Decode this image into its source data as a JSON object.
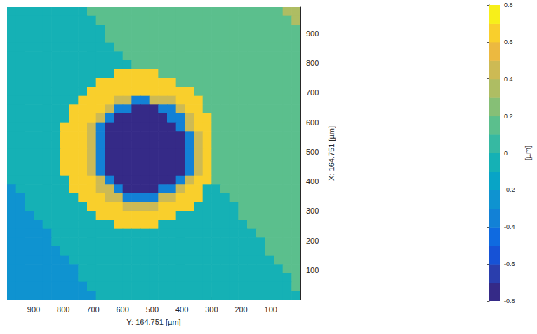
{
  "chart_data": {
    "type": "heatmap",
    "xlabel": "Y: 164.751 [µm]",
    "ylabel": "X: 164.751 [µm]",
    "xlim": [
      990,
      0
    ],
    "ylim": [
      0,
      990
    ],
    "xticks": [
      900,
      800,
      700,
      600,
      500,
      400,
      300,
      200,
      100
    ],
    "yticks": [
      100,
      200,
      300,
      400,
      500,
      600,
      700,
      800,
      900
    ],
    "grid": false,
    "x": [
      975,
      945,
      915,
      885,
      855,
      825,
      795,
      765,
      735,
      705,
      675,
      645,
      615,
      585,
      555,
      525,
      495,
      465,
      435,
      405,
      375,
      345,
      315,
      285,
      255,
      225,
      195,
      165,
      135,
      105,
      75,
      45,
      15
    ],
    "y": [
      975,
      945,
      915,
      885,
      855,
      825,
      795,
      765,
      735,
      705,
      675,
      645,
      615,
      585,
      555,
      525,
      495,
      465,
      435,
      405,
      375,
      345,
      315,
      285,
      255,
      225,
      195,
      165,
      135,
      105,
      75,
      45,
      15
    ],
    "z": [
      [
        -0.1,
        -0.1,
        -0.1,
        -0.1,
        -0.1,
        -0.1,
        -0.1,
        -0.1,
        -0.1,
        0.1,
        0.1,
        0.1,
        0.1,
        0.1,
        0.1,
        0.1,
        0.1,
        0.1,
        0.1,
        0.1,
        0.1,
        0.1,
        0.1,
        0.1,
        0.1,
        0.1,
        0.1,
        0.1,
        0.1,
        0.1,
        0.1,
        0.3,
        0.3
      ],
      [
        -0.1,
        -0.1,
        -0.1,
        -0.1,
        -0.1,
        -0.1,
        -0.1,
        -0.1,
        -0.1,
        -0.1,
        0.1,
        0.1,
        0.1,
        0.1,
        0.1,
        0.1,
        0.1,
        0.1,
        0.1,
        0.1,
        0.1,
        0.1,
        0.1,
        0.1,
        0.1,
        0.1,
        0.1,
        0.1,
        0.1,
        0.1,
        0.1,
        0.1,
        0.3
      ],
      [
        -0.1,
        -0.1,
        -0.1,
        -0.1,
        -0.1,
        -0.1,
        -0.1,
        -0.1,
        -0.1,
        -0.1,
        -0.1,
        0.1,
        0.1,
        0.1,
        0.1,
        0.1,
        0.1,
        0.1,
        0.1,
        0.1,
        0.1,
        0.1,
        0.1,
        0.1,
        0.1,
        0.1,
        0.1,
        0.1,
        0.1,
        0.1,
        0.1,
        0.1,
        0.1
      ],
      [
        -0.1,
        -0.1,
        -0.1,
        -0.1,
        -0.1,
        -0.1,
        -0.1,
        -0.1,
        -0.1,
        -0.1,
        -0.1,
        0.1,
        0.1,
        0.1,
        0.1,
        0.1,
        0.1,
        0.1,
        0.1,
        0.1,
        0.1,
        0.1,
        0.1,
        0.1,
        0.1,
        0.1,
        0.1,
        0.1,
        0.1,
        0.1,
        0.1,
        0.1,
        0.1
      ],
      [
        -0.1,
        -0.1,
        -0.1,
        -0.1,
        -0.1,
        -0.1,
        -0.1,
        -0.1,
        -0.1,
        -0.1,
        -0.1,
        -0.1,
        0.1,
        0.1,
        0.1,
        0.1,
        0.1,
        0.1,
        0.1,
        0.1,
        0.1,
        0.1,
        0.1,
        0.1,
        0.1,
        0.1,
        0.1,
        0.1,
        0.1,
        0.1,
        0.1,
        0.1,
        0.1
      ],
      [
        -0.1,
        -0.1,
        -0.1,
        -0.1,
        -0.1,
        -0.1,
        -0.1,
        -0.1,
        -0.1,
        -0.1,
        -0.1,
        -0.1,
        -0.1,
        0.1,
        0.1,
        0.1,
        0.1,
        0.1,
        0.1,
        0.1,
        0.1,
        0.1,
        0.1,
        0.1,
        0.1,
        0.1,
        0.1,
        0.1,
        0.1,
        0.1,
        0.1,
        0.1,
        0.1
      ],
      [
        -0.1,
        -0.1,
        -0.1,
        -0.1,
        -0.1,
        -0.1,
        -0.1,
        -0.1,
        -0.1,
        -0.1,
        -0.1,
        -0.1,
        -0.1,
        -0.1,
        0.1,
        0.1,
        0.1,
        0.1,
        0.1,
        0.1,
        0.1,
        0.1,
        0.1,
        0.1,
        0.1,
        0.1,
        0.1,
        0.1,
        0.1,
        0.1,
        0.1,
        0.1,
        0.1
      ],
      [
        -0.1,
        -0.1,
        -0.1,
        -0.1,
        -0.1,
        -0.1,
        -0.1,
        -0.1,
        -0.1,
        -0.1,
        -0.1,
        -0.1,
        0.65,
        0.65,
        0.65,
        0.65,
        0.65,
        0.1,
        0.1,
        0.1,
        0.1,
        0.1,
        0.1,
        0.1,
        0.1,
        0.1,
        0.1,
        0.1,
        0.1,
        0.1,
        0.1,
        0.1,
        0.1
      ],
      [
        -0.1,
        -0.1,
        -0.1,
        -0.1,
        -0.1,
        -0.1,
        -0.1,
        -0.1,
        -0.1,
        -0.1,
        0.65,
        0.65,
        0.65,
        0.65,
        0.65,
        0.65,
        0.65,
        0.65,
        0.65,
        0.1,
        0.1,
        0.1,
        0.1,
        0.1,
        0.1,
        0.1,
        0.1,
        0.1,
        0.1,
        0.1,
        0.1,
        0.1,
        0.1
      ],
      [
        -0.1,
        -0.1,
        -0.1,
        -0.1,
        -0.1,
        -0.1,
        -0.1,
        -0.1,
        -0.1,
        0.65,
        0.65,
        0.65,
        0.65,
        0.65,
        0.65,
        0.65,
        0.65,
        0.65,
        0.65,
        0.65,
        0.65,
        0.1,
        0.1,
        0.1,
        0.1,
        0.1,
        0.1,
        0.1,
        0.1,
        0.1,
        0.1,
        0.1,
        0.1
      ],
      [
        -0.1,
        -0.1,
        -0.1,
        -0.1,
        -0.1,
        -0.1,
        -0.1,
        -0.1,
        0.65,
        0.65,
        0.65,
        0.65,
        0.45,
        0.45,
        -0.35,
        -0.35,
        0.45,
        0.45,
        0.45,
        0.65,
        0.65,
        0.65,
        0.1,
        0.1,
        0.1,
        0.1,
        0.1,
        0.1,
        0.1,
        0.1,
        0.1,
        0.1,
        0.1
      ],
      [
        -0.1,
        -0.1,
        -0.1,
        -0.1,
        -0.1,
        -0.1,
        -0.1,
        0.65,
        0.65,
        0.65,
        0.65,
        0.45,
        -0.35,
        -0.35,
        -0.75,
        -0.75,
        -0.75,
        -0.35,
        -0.35,
        0.45,
        0.65,
        0.65,
        0.1,
        0.1,
        0.1,
        0.1,
        0.1,
        0.1,
        0.1,
        0.1,
        0.1,
        0.1,
        0.1
      ],
      [
        -0.1,
        -0.1,
        -0.1,
        -0.1,
        -0.1,
        -0.1,
        -0.1,
        0.65,
        0.65,
        0.65,
        0.45,
        -0.35,
        -0.75,
        -0.75,
        -0.75,
        -0.75,
        -0.75,
        -0.75,
        -0.35,
        -0.35,
        0.45,
        0.65,
        0.65,
        0.1,
        0.1,
        0.1,
        0.1,
        0.1,
        0.1,
        0.1,
        0.1,
        0.1,
        0.1
      ],
      [
        -0.1,
        -0.1,
        -0.1,
        -0.1,
        -0.1,
        -0.1,
        0.65,
        0.65,
        0.65,
        0.45,
        -0.35,
        -0.75,
        -0.75,
        -0.75,
        -0.75,
        -0.75,
        -0.75,
        -0.75,
        -0.75,
        -0.35,
        0.45,
        0.65,
        0.65,
        0.1,
        0.1,
        0.1,
        0.1,
        0.1,
        0.1,
        0.1,
        0.1,
        0.1,
        0.1
      ],
      [
        -0.1,
        -0.1,
        -0.1,
        -0.1,
        -0.1,
        -0.1,
        0.65,
        0.65,
        0.65,
        0.45,
        -0.35,
        -0.75,
        -0.75,
        -0.75,
        -0.75,
        -0.75,
        -0.75,
        -0.75,
        -0.75,
        -0.75,
        -0.35,
        0.45,
        0.65,
        0.1,
        0.1,
        0.1,
        0.1,
        0.1,
        0.1,
        0.1,
        0.1,
        0.1,
        0.1
      ],
      [
        -0.1,
        -0.1,
        -0.1,
        -0.1,
        -0.1,
        -0.1,
        0.65,
        0.65,
        0.65,
        0.45,
        -0.35,
        -0.75,
        -0.75,
        -0.75,
        -0.75,
        -0.75,
        -0.75,
        -0.75,
        -0.75,
        -0.75,
        -0.35,
        0.45,
        0.65,
        0.1,
        0.1,
        0.1,
        0.1,
        0.1,
        0.1,
        0.1,
        0.1,
        0.1,
        0.1
      ],
      [
        -0.1,
        -0.1,
        -0.1,
        -0.1,
        -0.1,
        -0.1,
        0.65,
        0.65,
        0.65,
        0.45,
        -0.35,
        -0.75,
        -0.75,
        -0.75,
        -0.75,
        -0.75,
        -0.75,
        -0.75,
        -0.75,
        -0.75,
        -0.35,
        0.45,
        0.65,
        0.1,
        0.1,
        0.1,
        0.1,
        0.1,
        0.1,
        0.1,
        0.1,
        0.1,
        0.1
      ],
      [
        -0.1,
        -0.1,
        -0.1,
        -0.1,
        -0.1,
        -0.1,
        0.65,
        0.65,
        0.65,
        0.45,
        -0.35,
        -0.75,
        -0.75,
        -0.75,
        -0.75,
        -0.75,
        -0.75,
        -0.75,
        -0.75,
        -0.75,
        -0.35,
        0.45,
        0.65,
        0.1,
        0.1,
        0.1,
        0.1,
        0.1,
        0.1,
        0.1,
        0.1,
        0.1,
        0.1
      ],
      [
        -0.1,
        -0.1,
        -0.1,
        -0.1,
        -0.1,
        -0.1,
        0.65,
        0.65,
        0.65,
        0.45,
        -0.35,
        -0.75,
        -0.75,
        -0.75,
        -0.75,
        -0.75,
        -0.75,
        -0.75,
        -0.75,
        -0.75,
        -0.35,
        0.45,
        0.65,
        0.1,
        0.1,
        0.1,
        0.1,
        0.1,
        0.1,
        0.1,
        0.1,
        0.1,
        0.1
      ],
      [
        -0.1,
        -0.1,
        -0.1,
        -0.1,
        -0.1,
        -0.1,
        -0.1,
        0.65,
        0.65,
        0.65,
        0.45,
        -0.35,
        -0.75,
        -0.75,
        -0.75,
        -0.75,
        -0.75,
        -0.75,
        -0.75,
        -0.35,
        0.45,
        0.65,
        0.65,
        0.1,
        0.1,
        0.1,
        0.1,
        0.1,
        0.1,
        0.1,
        0.1,
        0.1,
        0.1
      ],
      [
        -0.3,
        -0.1,
        -0.1,
        -0.1,
        -0.1,
        -0.1,
        -0.1,
        0.65,
        0.65,
        0.65,
        0.45,
        0.45,
        -0.35,
        -0.75,
        -0.75,
        -0.75,
        -0.75,
        -0.35,
        -0.35,
        0.45,
        0.65,
        0.65,
        -0.1,
        -0.1,
        0.1,
        0.1,
        0.1,
        0.1,
        0.1,
        0.1,
        0.1,
        0.1,
        0.1
      ],
      [
        -0.3,
        -0.3,
        -0.1,
        -0.1,
        -0.1,
        -0.1,
        -0.1,
        -0.1,
        0.65,
        0.65,
        0.65,
        0.45,
        0.45,
        -0.35,
        -0.35,
        -0.35,
        -0.35,
        0.45,
        0.45,
        0.65,
        0.65,
        0.65,
        -0.1,
        -0.1,
        -0.1,
        0.1,
        0.1,
        0.1,
        0.1,
        0.1,
        0.1,
        0.1,
        0.1
      ],
      [
        -0.3,
        -0.3,
        -0.1,
        -0.1,
        -0.1,
        -0.1,
        -0.1,
        -0.1,
        -0.1,
        0.65,
        0.65,
        0.65,
        0.65,
        0.45,
        0.45,
        0.45,
        0.45,
        0.65,
        0.65,
        0.65,
        0.65,
        -0.1,
        -0.1,
        -0.1,
        -0.1,
        -0.1,
        0.1,
        0.1,
        0.1,
        0.1,
        0.1,
        0.1,
        0.1
      ],
      [
        -0.3,
        -0.3,
        -0.3,
        -0.1,
        -0.1,
        -0.1,
        -0.1,
        -0.1,
        -0.1,
        -0.1,
        0.65,
        0.65,
        0.65,
        0.65,
        0.65,
        0.65,
        0.65,
        0.65,
        0.65,
        -0.1,
        -0.1,
        -0.1,
        -0.1,
        -0.1,
        -0.1,
        -0.1,
        0.1,
        0.1,
        0.1,
        0.1,
        0.1,
        0.1,
        0.1
      ],
      [
        -0.3,
        -0.3,
        -0.3,
        -0.3,
        -0.1,
        -0.1,
        -0.1,
        -0.1,
        -0.1,
        -0.1,
        -0.1,
        -0.1,
        0.65,
        0.65,
        0.65,
        0.65,
        0.65,
        -0.1,
        -0.1,
        -0.1,
        -0.1,
        -0.1,
        -0.1,
        -0.1,
        -0.1,
        -0.1,
        -0.1,
        0.1,
        0.1,
        0.1,
        0.1,
        0.1,
        0.1
      ],
      [
        -0.3,
        -0.3,
        -0.3,
        -0.3,
        -0.3,
        -0.1,
        -0.1,
        -0.1,
        -0.1,
        -0.1,
        -0.1,
        -0.1,
        -0.1,
        -0.1,
        -0.1,
        -0.1,
        -0.1,
        -0.1,
        -0.1,
        -0.1,
        -0.1,
        -0.1,
        -0.1,
        -0.1,
        -0.1,
        -0.1,
        -0.1,
        -0.1,
        0.1,
        0.1,
        0.1,
        0.1,
        0.1
      ],
      [
        -0.3,
        -0.3,
        -0.3,
        -0.3,
        -0.3,
        -0.1,
        -0.1,
        -0.1,
        -0.1,
        -0.1,
        -0.1,
        -0.1,
        -0.1,
        -0.1,
        -0.1,
        -0.1,
        -0.1,
        -0.1,
        -0.1,
        -0.1,
        -0.1,
        -0.1,
        -0.1,
        -0.1,
        -0.1,
        -0.1,
        -0.1,
        -0.1,
        -0.1,
        0.1,
        0.1,
        0.1,
        0.1
      ],
      [
        -0.3,
        -0.3,
        -0.3,
        -0.3,
        -0.3,
        -0.3,
        -0.1,
        -0.1,
        -0.1,
        -0.1,
        -0.1,
        -0.1,
        -0.1,
        -0.1,
        -0.1,
        -0.1,
        -0.1,
        -0.1,
        -0.1,
        -0.1,
        -0.1,
        -0.1,
        -0.1,
        -0.1,
        -0.1,
        -0.1,
        -0.1,
        -0.1,
        -0.1,
        0.1,
        0.1,
        0.1,
        0.1
      ],
      [
        -0.3,
        -0.3,
        -0.3,
        -0.3,
        -0.3,
        -0.3,
        -0.3,
        -0.1,
        -0.1,
        -0.1,
        -0.1,
        -0.1,
        -0.1,
        -0.1,
        -0.1,
        -0.1,
        -0.1,
        -0.1,
        -0.1,
        -0.1,
        -0.1,
        -0.1,
        -0.1,
        -0.1,
        -0.1,
        -0.1,
        -0.1,
        -0.1,
        -0.1,
        -0.1,
        0.1,
        0.1,
        0.1
      ],
      [
        -0.3,
        -0.3,
        -0.3,
        -0.3,
        -0.3,
        -0.3,
        -0.3,
        -0.3,
        -0.1,
        -0.1,
        -0.1,
        -0.1,
        -0.1,
        -0.1,
        -0.1,
        -0.1,
        -0.1,
        -0.1,
        -0.1,
        -0.1,
        -0.1,
        -0.1,
        -0.1,
        -0.1,
        -0.1,
        -0.1,
        -0.1,
        -0.1,
        -0.1,
        -0.1,
        -0.1,
        0.1,
        0.1
      ],
      [
        -0.3,
        -0.3,
        -0.3,
        -0.3,
        -0.3,
        -0.3,
        -0.3,
        -0.3,
        -0.1,
        -0.1,
        -0.1,
        -0.1,
        -0.1,
        -0.1,
        -0.1,
        -0.1,
        -0.1,
        -0.1,
        -0.1,
        -0.1,
        -0.1,
        -0.1,
        -0.1,
        -0.1,
        -0.1,
        -0.1,
        -0.1,
        -0.1,
        -0.1,
        -0.1,
        -0.1,
        -0.1,
        0.1
      ],
      [
        -0.3,
        -0.3,
        -0.3,
        -0.3,
        -0.3,
        -0.3,
        -0.3,
        -0.3,
        -0.3,
        -0.1,
        -0.1,
        -0.1,
        -0.1,
        -0.1,
        -0.1,
        -0.1,
        -0.1,
        -0.1,
        -0.1,
        -0.1,
        -0.1,
        -0.1,
        -0.1,
        -0.1,
        -0.1,
        -0.1,
        -0.1,
        -0.1,
        -0.1,
        -0.1,
        -0.1,
        -0.1,
        0.1
      ],
      [
        -0.3,
        -0.3,
        -0.3,
        -0.3,
        -0.3,
        -0.3,
        -0.3,
        -0.3,
        -0.3,
        -0.3,
        -0.1,
        -0.1,
        -0.1,
        -0.1,
        -0.1,
        -0.1,
        -0.1,
        -0.1,
        -0.1,
        -0.1,
        -0.1,
        -0.1,
        -0.1,
        -0.1,
        -0.1,
        -0.1,
        -0.1,
        -0.1,
        -0.1,
        -0.1,
        -0.1,
        -0.1,
        -0.1
      ]
    ],
    "colorbar": {
      "label": "[µm]",
      "range": [
        -0.8,
        0.8
      ],
      "ticks": [
        -0.8,
        -0.6,
        -0.4,
        -0.2,
        0,
        0.2,
        0.4,
        0.6,
        0.8
      ],
      "colors": [
        "#352a87",
        "#2a3ead",
        "#1652d6",
        "#0f6ae0",
        "#1281d6",
        "#0f93d0",
        "#08a4c6",
        "#15b1b5",
        "#36b9a2",
        "#5bbf8d",
        "#86bf76",
        "#aebd63",
        "#cdba54",
        "#ecb940",
        "#f9cf2c",
        "#f7ef1a"
      ]
    }
  }
}
